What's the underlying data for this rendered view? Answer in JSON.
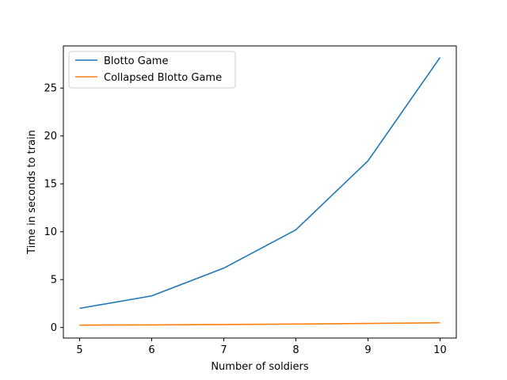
{
  "chart_data": {
    "type": "line",
    "title": "",
    "xlabel": "Number of soldiers",
    "ylabel": "Time in seconds to train",
    "x": [
      5,
      6,
      7,
      8,
      9,
      10
    ],
    "xlim": [
      4.775,
      10.225
    ],
    "ylim": [
      -1.1,
      29.4
    ],
    "xticks": [
      5,
      6,
      7,
      8,
      9,
      10
    ],
    "yticks": [
      0,
      5,
      10,
      15,
      20,
      25
    ],
    "grid": false,
    "legend_position": "top-left",
    "series": [
      {
        "name": "Blotto Game",
        "color": "#1f77b4",
        "values": [
          2.0,
          3.3,
          6.2,
          10.2,
          17.4,
          28.2
        ]
      },
      {
        "name": "Collapsed Blotto Game",
        "color": "#ff7f0e",
        "values": [
          0.25,
          0.27,
          0.31,
          0.36,
          0.42,
          0.5
        ]
      }
    ]
  }
}
